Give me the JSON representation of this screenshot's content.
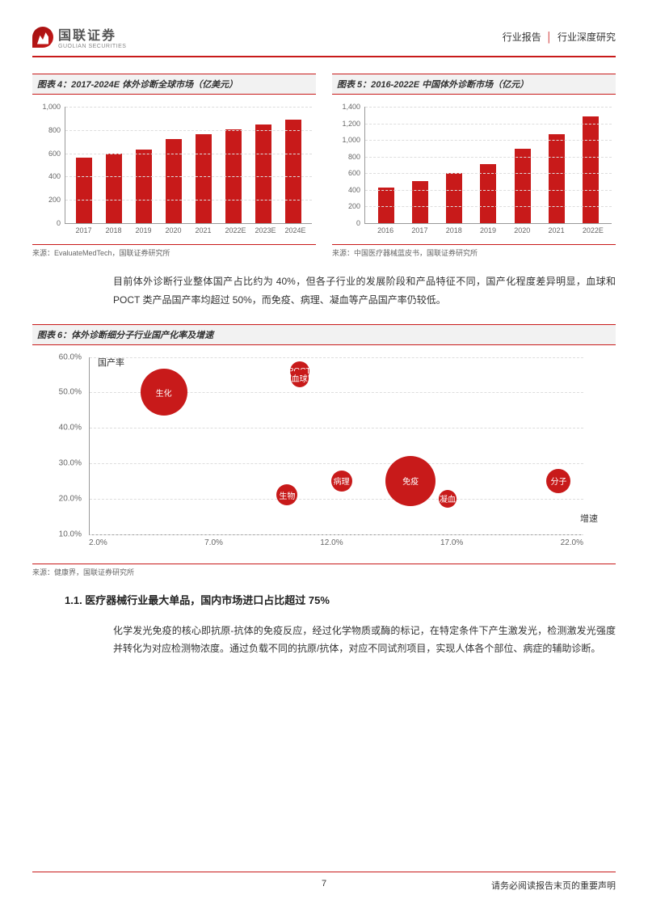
{
  "header": {
    "logo_chinese": "国联证券",
    "logo_en": "GUOLIAN SECURITIES",
    "right_left": "行业报告",
    "right_right": "行业深度研究"
  },
  "chart4": {
    "title": "图表 4：2017-2024E 体外诊断全球市场（亿美元）",
    "type": "bar",
    "categories": [
      "2017",
      "2018",
      "2019",
      "2020",
      "2021",
      "2022E",
      "2023E",
      "2024E"
    ],
    "values": [
      560,
      595,
      630,
      725,
      765,
      805,
      845,
      890
    ],
    "ylim": [
      0,
      1000
    ],
    "ytick_step": 200,
    "yticks": [
      "0",
      "200",
      "400",
      "600",
      "800",
      "1,000"
    ],
    "bar_color": "#c81a1a",
    "grid_color": "#dddddd",
    "source": "来源：EvaluateMedTech，国联证券研究所"
  },
  "chart5": {
    "title": "图表 5：2016-2022E 中国体外诊断市场（亿元）",
    "type": "bar",
    "categories": [
      "2016",
      "2017",
      "2018",
      "2019",
      "2020",
      "2021",
      "2022E"
    ],
    "values": [
      430,
      510,
      600,
      710,
      890,
      1070,
      1280
    ],
    "ylim": [
      0,
      1400
    ],
    "ytick_step": 200,
    "yticks": [
      "0",
      "200",
      "400",
      "600",
      "800",
      "1,000",
      "1,200",
      "1,400"
    ],
    "bar_color": "#c81a1a",
    "grid_color": "#dddddd",
    "source": "来源：中国医疗器械蓝皮书，国联证券研究所"
  },
  "paragraph1": "目前体外诊断行业整体国产占比约为 40%，但各子行业的发展阶段和产品特征不同，国产化程度差异明显，血球和 POCT 类产品国产率均超过 50%，而免疫、病理、凝血等产品国产率仍较低。",
  "chart6": {
    "title": "图表 6：体外诊断细分子行业国产化率及增速",
    "type": "bubble",
    "x_axis_title": "增速",
    "y_axis_title": "国产率",
    "xlim": [
      2,
      22
    ],
    "ylim": [
      10,
      60
    ],
    "xticks": [
      "2.0%",
      "7.0%",
      "12.0%",
      "17.0%",
      "22.0%"
    ],
    "yticks": [
      "10.0%",
      "20.0%",
      "30.0%",
      "40.0%",
      "50.0%",
      "60.0%"
    ],
    "bubble_color": "#c81a1a",
    "bubbles": [
      {
        "label": "生化",
        "x": 5.0,
        "y": 50,
        "size": 58
      },
      {
        "label": "POCT",
        "x": 10.5,
        "y": 56,
        "size": 24
      },
      {
        "label": "血球",
        "x": 10.5,
        "y": 54,
        "size": 22
      },
      {
        "label": "生物",
        "x": 10.0,
        "y": 21,
        "size": 26
      },
      {
        "label": "病理",
        "x": 12.2,
        "y": 25,
        "size": 26
      },
      {
        "label": "免疫",
        "x": 15.0,
        "y": 25,
        "size": 62
      },
      {
        "label": "凝血",
        "x": 16.5,
        "y": 20,
        "size": 22
      },
      {
        "label": "分子",
        "x": 21.0,
        "y": 25,
        "size": 30
      }
    ],
    "source": "来源：健康界，国联证券研究所"
  },
  "section_title": "1.1. 医疗器械行业最大单品，国内市场进口占比超过 75%",
  "paragraph2": "化学发光免疫的核心即抗原-抗体的免疫反应，经过化学物质或酶的标记，在特定条件下产生激发光，检测激发光强度并转化为对应检测物浓度。通过负载不同的抗原/抗体，对应不同试剂项目，实现人体各个部位、病症的辅助诊断。",
  "footer": {
    "page": "7",
    "disclaimer": "请务必阅读报告末页的重要声明"
  },
  "colors": {
    "brand_red": "#c81a1a",
    "text": "#333333",
    "grid": "#dddddd",
    "title_bg": "#f2f2f2"
  }
}
